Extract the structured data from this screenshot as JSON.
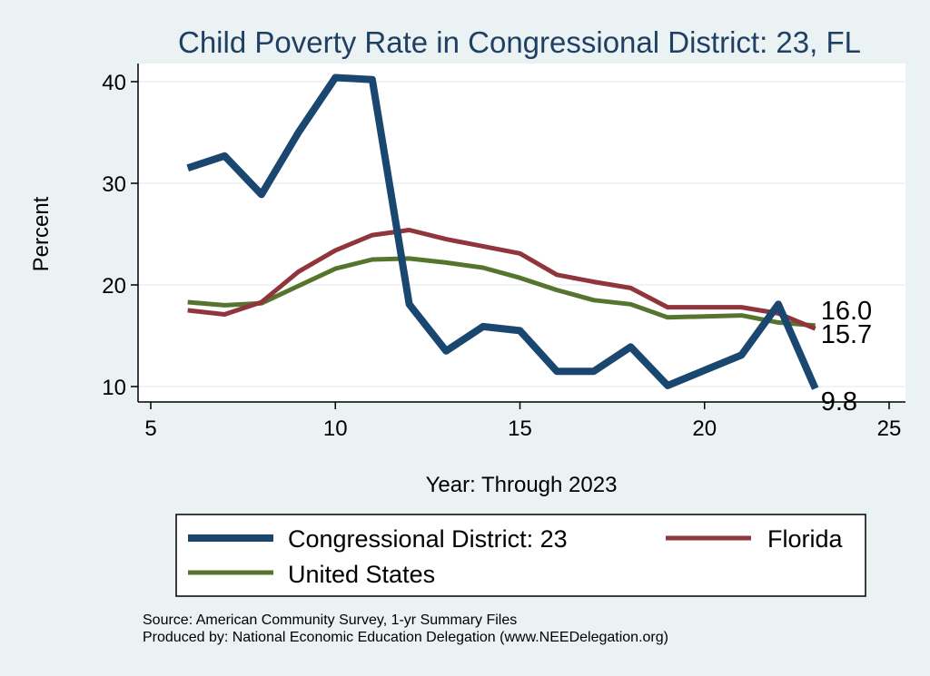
{
  "chart_data": {
    "type": "line",
    "title": "Child Poverty Rate in Congressional District:  23, FL",
    "xlabel": "Year: Through 2023",
    "ylabel": "Percent",
    "xlim": [
      5,
      25
    ],
    "ylim": [
      9,
      41
    ],
    "xticks": [
      5,
      10,
      15,
      20,
      25
    ],
    "yticks": [
      10,
      20,
      30,
      40
    ],
    "grid": true,
    "legend_position": "bottom",
    "series": [
      {
        "name": "Congressional District:  23",
        "color": "#1a476f",
        "x": [
          6,
          7,
          8,
          9,
          10,
          11,
          12,
          13,
          14,
          15,
          16,
          17,
          18,
          19,
          20,
          21,
          22,
          23
        ],
        "values": [
          31.5,
          32.7,
          28.9,
          35.0,
          40.4,
          40.2,
          18.1,
          13.5,
          15.9,
          15.5,
          11.5,
          11.5,
          13.9,
          10.1,
          11.6,
          13.1,
          18.1,
          9.8
        ],
        "end_label": "9.8"
      },
      {
        "name": "Florida",
        "color": "#90353b",
        "x": [
          6,
          7,
          8,
          9,
          10,
          11,
          12,
          13,
          14,
          15,
          16,
          17,
          18,
          19,
          20,
          21,
          22,
          23
        ],
        "values": [
          17.5,
          17.1,
          18.3,
          21.3,
          23.4,
          24.9,
          25.4,
          24.5,
          23.8,
          23.1,
          21.0,
          20.3,
          19.7,
          17.8,
          17.8,
          17.8,
          17.2,
          15.7
        ],
        "end_label": "15.7"
      },
      {
        "name": "United States",
        "color": "#55752f",
        "x": [
          6,
          7,
          8,
          9,
          10,
          11,
          12,
          13,
          14,
          15,
          16,
          17,
          18,
          19,
          20,
          21,
          22,
          23
        ],
        "values": [
          18.3,
          18.0,
          18.2,
          19.9,
          21.6,
          22.5,
          22.6,
          22.2,
          21.7,
          20.7,
          19.5,
          18.5,
          18.1,
          16.8,
          16.9,
          17.0,
          16.3,
          16.0
        ],
        "end_label": "16.0"
      }
    ]
  },
  "notes": {
    "source": "Source: American Community Survey, 1-yr Summary Files",
    "producer": "Produced by: National Economic Education Delegation (www.NEEDelegation.org)"
  }
}
